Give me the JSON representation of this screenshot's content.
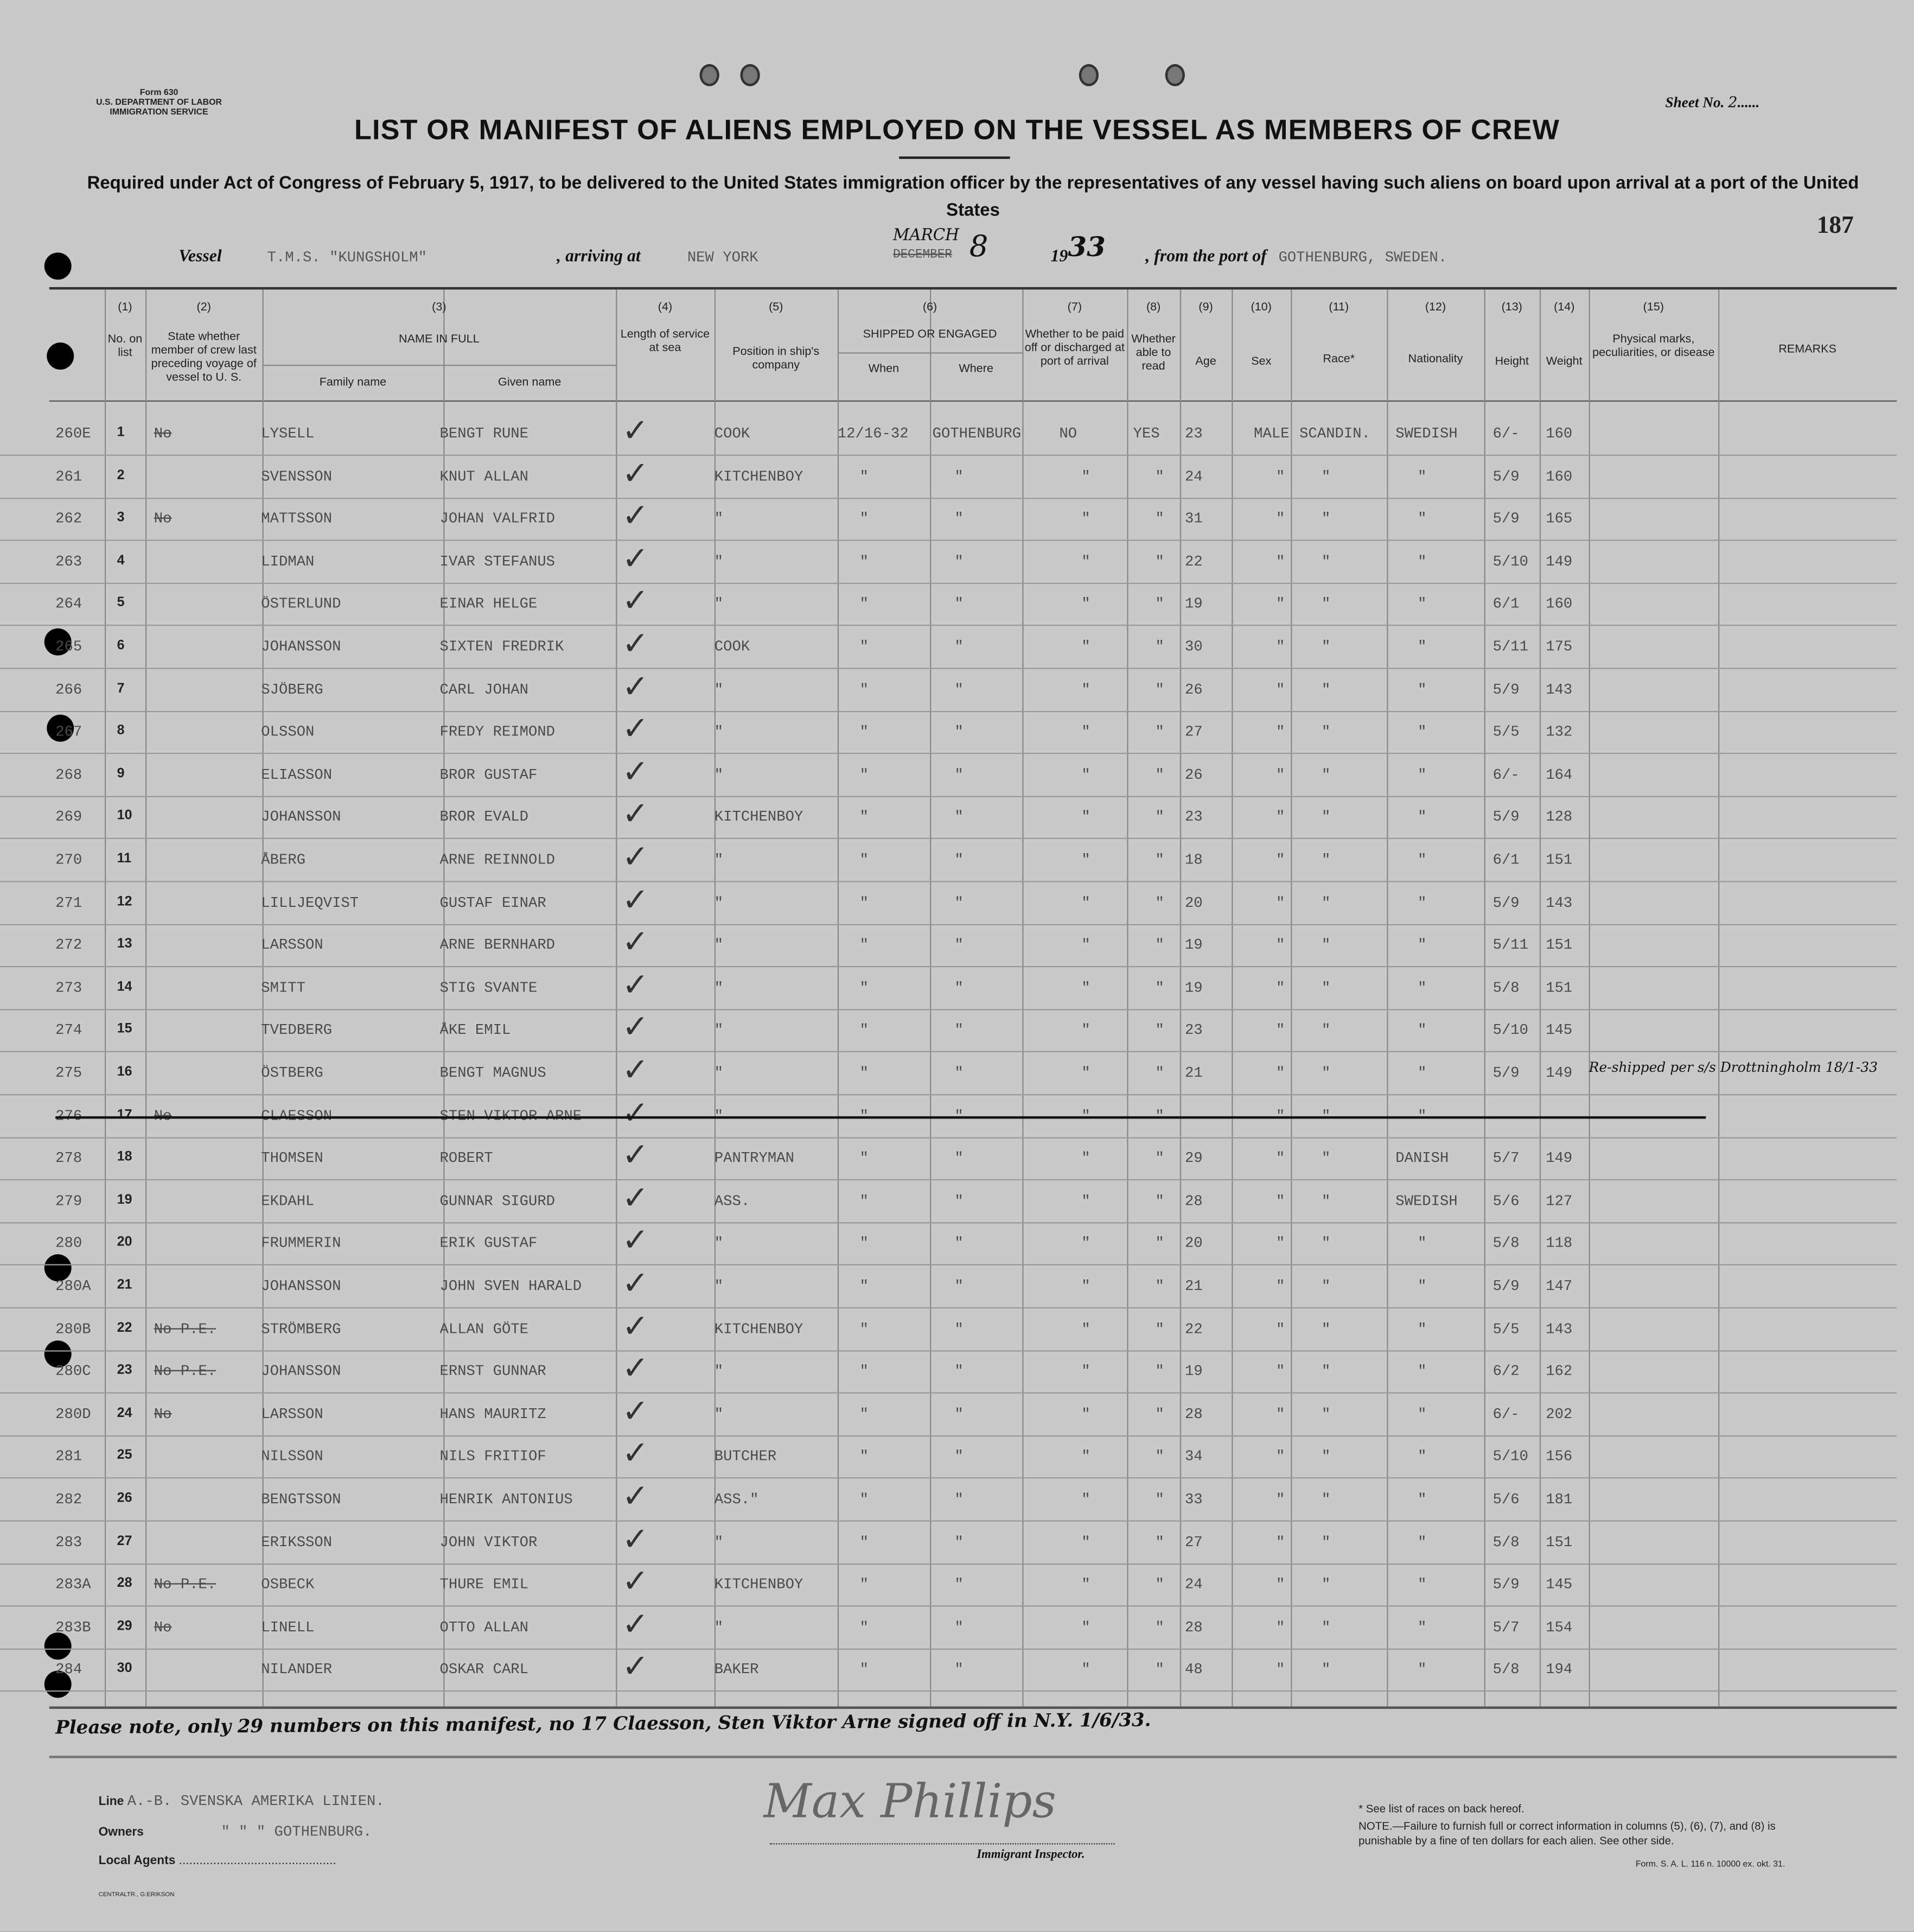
{
  "form_id": "Form 630",
  "department": "U.S. DEPARTMENT OF LABOR",
  "service": "IMMIGRATION SERVICE",
  "sheet_label": "Sheet No.",
  "sheet_no": "2",
  "page_number": "187",
  "title": "LIST OR MANIFEST OF ALIENS EMPLOYED ON THE VESSEL AS MEMBERS OF CREW",
  "subtitle": "Required under Act of Congress of February 5, 1917, to be delivered to the United States immigration officer by the representatives of any vessel having such aliens on board upon arrival at a port of the United States",
  "vessel": {
    "vessel_label": "Vessel",
    "vessel_name": "T.M.S. \"KUNGSHOLM\"",
    "arriving_label": ", arriving at",
    "arriving_port": "NEW YORK",
    "month_struck": "DECEMBER",
    "month": "MARCH",
    "day": "8",
    "year_prefix": "19",
    "year": "33",
    "from_label": ", from the port of",
    "from_port": "GOTHENBURG, SWEDEN."
  },
  "columns": {
    "c1_num": "(1)",
    "c1": "No. on list",
    "c2_num": "(2)",
    "c2": "State whether member of crew last preceding voyage of vessel to U. S.",
    "c3_num": "(3)",
    "c3": "NAME IN FULL",
    "c3a": "Family name",
    "c3b": "Given name",
    "c4_num": "(4)",
    "c4": "Length of service at sea",
    "c5_num": "(5)",
    "c5": "Position in ship's company",
    "c6_num": "(6)",
    "c6": "SHIPPED OR ENGAGED",
    "c6a": "When",
    "c6b": "Where",
    "c7_num": "(7)",
    "c7": "Whether to be paid off or discharged at port of arrival",
    "c8_num": "(8)",
    "c8": "Whether able to read",
    "c9_num": "(9)",
    "c9": "Age",
    "c10_num": "(10)",
    "c10": "Sex",
    "c11_num": "(11)",
    "c11": "Race*",
    "c12_num": "(12)",
    "c12": "Nationality",
    "c13_num": "(13)",
    "c13": "Height",
    "c14_num": "(14)",
    "c14": "Weight",
    "c15_num": "(15)",
    "c15": "Physical marks, peculiarities, or disease",
    "c16": "REMARKS"
  },
  "rows": [
    {
      "ref": "260E",
      "no": "1",
      "prev": "No",
      "family": "LYSELL",
      "given": "BENGT RUNE",
      "pos": "COOK",
      "when": "12/16-32",
      "where": "GOTHENBURG",
      "paid": "NO",
      "read": "YES",
      "age": "23",
      "sex": "MALE",
      "race": "SCANDIN.",
      "nat": "SWEDISH",
      "height": "6/-",
      "weight": "160"
    },
    {
      "ref": "261",
      "no": "2",
      "prev": "",
      "family": "SVENSSON",
      "given": "KNUT ALLAN",
      "pos": "KITCHENBOY",
      "age": "24",
      "height": "5/9",
      "weight": "160"
    },
    {
      "ref": "262",
      "no": "3",
      "prev": "No",
      "family": "MATTSSON",
      "given": "JOHAN VALFRID",
      "pos": "\"",
      "age": "31",
      "height": "5/9",
      "weight": "165"
    },
    {
      "ref": "263",
      "no": "4",
      "prev": "",
      "family": "LIDMAN",
      "given": "IVAR STEFANUS",
      "pos": "\"",
      "age": "22",
      "height": "5/10",
      "weight": "149"
    },
    {
      "ref": "264",
      "no": "5",
      "prev": "",
      "family": "ÖSTERLUND",
      "given": "EINAR HELGE",
      "pos": "\"",
      "age": "19",
      "height": "6/1",
      "weight": "160"
    },
    {
      "ref": "265",
      "no": "6",
      "prev": "",
      "family": "JOHANSSON",
      "given": "SIXTEN FREDRIK",
      "pos": "COOK",
      "age": "30",
      "height": "5/11",
      "weight": "175"
    },
    {
      "ref": "266",
      "no": "7",
      "prev": "",
      "family": "SJÖBERG",
      "given": "CARL JOHAN",
      "pos": "\"",
      "age": "26",
      "height": "5/9",
      "weight": "143"
    },
    {
      "ref": "267",
      "no": "8",
      "prev": "",
      "family": "OLSSON",
      "given": "FREDY REIMOND",
      "pos": "\"",
      "age": "27",
      "height": "5/5",
      "weight": "132"
    },
    {
      "ref": "268",
      "no": "9",
      "prev": "",
      "family": "ELIASSON",
      "given": "BROR GUSTAF",
      "pos": "\"",
      "age": "26",
      "height": "6/-",
      "weight": "164"
    },
    {
      "ref": "269",
      "no": "10",
      "prev": "",
      "family": "JOHANSSON",
      "given": "BROR EVALD",
      "pos": "KITCHENBOY",
      "age": "23",
      "height": "5/9",
      "weight": "128"
    },
    {
      "ref": "270",
      "no": "11",
      "prev": "",
      "family": "ÅBERG",
      "given": "ARNE REINNOLD",
      "pos": "\"",
      "age": "18",
      "height": "6/1",
      "weight": "151"
    },
    {
      "ref": "271",
      "no": "12",
      "prev": "",
      "family": "LILLJEQVIST",
      "given": "GUSTAF EINAR",
      "pos": "\"",
      "age": "20",
      "height": "5/9",
      "weight": "143"
    },
    {
      "ref": "272",
      "no": "13",
      "prev": "",
      "family": "LARSSON",
      "given": "ARNE BERNHARD",
      "pos": "\"",
      "age": "19",
      "height": "5/11",
      "weight": "151"
    },
    {
      "ref": "273",
      "no": "14",
      "prev": "",
      "family": "SMITT",
      "given": "STIG SVANTE",
      "pos": "\"",
      "age": "19",
      "height": "5/8",
      "weight": "151"
    },
    {
      "ref": "274",
      "no": "15",
      "prev": "",
      "family": "TVEDBERG",
      "given": "ÅKE EMIL",
      "pos": "\"",
      "age": "23",
      "height": "5/10",
      "weight": "145"
    },
    {
      "ref": "275",
      "no": "16",
      "prev": "",
      "family": "ÖSTBERG",
      "given": "BENGT MAGNUS",
      "pos": "\"",
      "age": "21",
      "height": "5/9",
      "weight": "149",
      "remark": "Re-shipped per s/s Drottningholm 18/1-33"
    },
    {
      "ref": "276",
      "no": "17",
      "prev": "No",
      "family": "CLAESSON",
      "given": "STEN VIKTOR ARNE",
      "pos": "\"",
      "age": "",
      "height": "",
      "weight": "",
      "struck": true
    },
    {
      "ref": "278",
      "no": "18",
      "prev": "",
      "family": "THOMSEN",
      "given": "ROBERT",
      "pos": "PANTRYMAN",
      "age": "29",
      "nat": "DANISH",
      "height": "5/7",
      "weight": "149"
    },
    {
      "ref": "279",
      "no": "19",
      "prev": "",
      "family": "EKDAHL",
      "given": "GUNNAR SIGURD",
      "pos": "ASS.",
      "age": "28",
      "nat": "SWEDISH",
      "height": "5/6",
      "weight": "127"
    },
    {
      "ref": "280",
      "no": "20",
      "prev": "",
      "family": "FRUMMERIN",
      "given": "ERIK GUSTAF",
      "pos": "\"",
      "age": "20",
      "height": "5/8",
      "weight": "118"
    },
    {
      "ref": "280A",
      "no": "21",
      "prev": "",
      "family": "JOHANSSON",
      "given": "JOHN SVEN HARALD",
      "pos": "\"",
      "age": "21",
      "height": "5/9",
      "weight": "147"
    },
    {
      "ref": "280B",
      "no": "22",
      "prev": "No P.E.",
      "family": "STRÖMBERG",
      "given": "ALLAN GÖTE",
      "pos": "KITCHENBOY",
      "age": "22",
      "height": "5/5",
      "weight": "143"
    },
    {
      "ref": "280C",
      "no": "23",
      "prev": "No P.E.",
      "family": "JOHANSSON",
      "given": "ERNST GUNNAR",
      "pos": "\"",
      "age": "19",
      "height": "6/2",
      "weight": "162"
    },
    {
      "ref": "280D",
      "no": "24",
      "prev": "No",
      "family": "LARSSON",
      "given": "HANS MAURITZ",
      "pos": "\"",
      "age": "28",
      "height": "6/-",
      "weight": "202"
    },
    {
      "ref": "281",
      "no": "25",
      "prev": "",
      "family": "NILSSON",
      "given": "NILS FRITIOF",
      "pos": "BUTCHER",
      "age": "34",
      "height": "5/10",
      "weight": "156"
    },
    {
      "ref": "282",
      "no": "26",
      "prev": "",
      "family": "BENGTSSON",
      "given": "HENRIK ANTONIUS",
      "pos": "ASS.\"",
      "age": "33",
      "height": "5/6",
      "weight": "181"
    },
    {
      "ref": "283",
      "no": "27",
      "prev": "",
      "family": "ERIKSSON",
      "given": "JOHN VIKTOR",
      "pos": "\"",
      "age": "27",
      "height": "5/8",
      "weight": "151"
    },
    {
      "ref": "283A",
      "no": "28",
      "prev": "No P.E.",
      "family": "OSBECK",
      "given": "THURE EMIL",
      "pos": "KITCHENBOY",
      "age": "24",
      "height": "5/9",
      "weight": "145"
    },
    {
      "ref": "283B",
      "no": "29",
      "prev": "No",
      "family": "LINELL",
      "given": "OTTO ALLAN",
      "pos": "\"",
      "age": "28",
      "height": "5/7",
      "weight": "154"
    },
    {
      "ref": "284",
      "no": "30",
      "prev": "",
      "family": "NILANDER",
      "given": "OSKAR CARL",
      "pos": "BAKER",
      "age": "48",
      "height": "5/8",
      "weight": "194"
    }
  ],
  "ditto": "\"",
  "check": "✓",
  "note": "Please note, only 29 numbers on this manifest, no 17 Claesson, Sten Viktor Arne signed off in N.Y. 1/6/33.",
  "footer": {
    "line_label": "Line",
    "line_value": "A.-B. SVENSKA AMERIKA LINIEN.",
    "owners_label": "Owners",
    "owners_value": "\"   \"   \"   GOTHENBURG.",
    "agents_label": "Local Agents",
    "signature": "Max Phillips",
    "inspector_label": "Immigrant Inspector.",
    "races_note": "* See list of races on back hereof.",
    "note_text": "NOTE.—Failure to furnish full or correct information in columns (5), (6), (7), and (8) is punishable by a fine of ten dollars for each alien. See other side.",
    "form_code": "Form. S. A. L. 116 n. 10000 ex. okt. 31.",
    "printer": "CENTRALTR., G:ERIKSON"
  }
}
